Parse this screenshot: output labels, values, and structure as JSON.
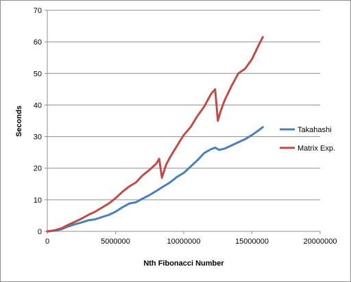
{
  "chart_data": {
    "type": "line",
    "xlabel": "Nth Fibonacci  Number",
    "ylabel": "Seconds",
    "xlim": [
      0,
      20000000
    ],
    "ylim": [
      0,
      70
    ],
    "xticks": [
      0,
      5000000,
      10000000,
      15000000,
      20000000
    ],
    "yticks": [
      0,
      10,
      20,
      30,
      40,
      50,
      60,
      70
    ],
    "xtick_labels": [
      "0",
      "5000000",
      "10000000",
      "15000000",
      "20000000"
    ],
    "ytick_labels": [
      "0",
      "10",
      "20",
      "30",
      "40",
      "50",
      "60",
      "70"
    ],
    "grid": "horizontal",
    "legend_position": "right",
    "series": [
      {
        "name": "Takahashi",
        "color": "#4a7ebb",
        "x": [
          0,
          500000,
          1000000,
          1500000,
          2000000,
          2500000,
          3000000,
          3500000,
          4000000,
          4500000,
          5000000,
          5500000,
          6000000,
          6500000,
          7000000,
          7500000,
          8000000,
          8500000,
          9000000,
          9500000,
          10000000,
          10500000,
          11000000,
          11500000,
          12000000,
          12300000,
          12600000,
          13000000,
          13500000,
          14000000,
          14500000,
          15000000,
          15500000,
          15800000
        ],
        "values": [
          0,
          0.2,
          0.6,
          1.5,
          2.2,
          2.8,
          3.5,
          3.8,
          4.5,
          5.2,
          6.2,
          7.6,
          8.8,
          9.2,
          10.4,
          11.5,
          12.8,
          14.2,
          15.5,
          17.2,
          18.5,
          20.5,
          22.5,
          24.8,
          26.0,
          26.5,
          25.8,
          26.2,
          27.2,
          28.2,
          29.2,
          30.5,
          32.0,
          33.0
        ]
      },
      {
        "name": "Matrix Exp.",
        "color": "#be4b48",
        "x": [
          0,
          500000,
          1000000,
          1500000,
          2000000,
          2500000,
          3000000,
          3500000,
          4000000,
          4500000,
          5000000,
          5500000,
          6000000,
          6500000,
          7000000,
          7500000,
          8000000,
          8200000,
          8400000,
          8700000,
          9000000,
          9500000,
          10000000,
          10500000,
          11000000,
          11500000,
          12000000,
          12300000,
          12500000,
          12700000,
          13000000,
          13500000,
          14000000,
          14500000,
          15000000,
          15500000,
          15800000
        ],
        "values": [
          0,
          0.3,
          0.9,
          2.0,
          3.0,
          4.0,
          5.2,
          6.2,
          7.5,
          8.8,
          10.5,
          12.5,
          14.2,
          15.5,
          17.8,
          19.5,
          21.5,
          23.0,
          17.0,
          21.0,
          23.5,
          27.0,
          30.5,
          33.0,
          36.5,
          39.5,
          43.5,
          45.0,
          35.0,
          38.0,
          41.5,
          46.0,
          50.0,
          51.5,
          54.5,
          59.0,
          61.5
        ]
      }
    ]
  }
}
